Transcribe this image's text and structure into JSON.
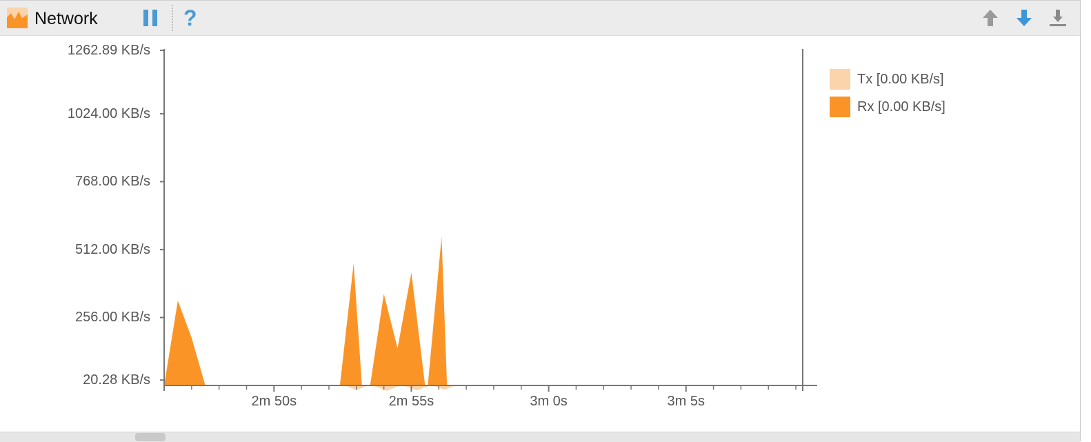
{
  "toolbar": {
    "title": "Network",
    "network_icon": "network-chart-icon",
    "pause_icon": "pause-icon",
    "help_icon": "help-icon",
    "help_glyph": "?",
    "up_icon": "arrow-up-icon",
    "down_icon": "arrow-down-icon",
    "download_icon": "download-icon"
  },
  "colors": {
    "tx": "#fcd4ab",
    "rx": "#fb9426",
    "accent_blue": "#4a9ad4",
    "axis": "#777777"
  },
  "legend": {
    "tx_label": "Tx [0.00 KB/s]",
    "rx_label": "Rx [0.00 KB/s]"
  },
  "chart_data": {
    "type": "area",
    "title": "Network",
    "xlabel": "",
    "ylabel": "",
    "y_tick_labels": [
      "1262.89 KB/s",
      "1024.00 KB/s",
      "768.00 KB/s",
      "512.00 KB/s",
      "256.00 KB/s",
      "20.28 KB/s"
    ],
    "y_ticks": [
      1262.89,
      1024,
      768,
      512,
      256,
      20.28
    ],
    "ylim": [
      0,
      1262.89
    ],
    "x_tick_labels": [
      "2m 50s",
      "2m 55s",
      "3m 0s",
      "3m 5s"
    ],
    "x_ticks": [
      170,
      175,
      180,
      185
    ],
    "xlim": [
      166,
      189.25
    ],
    "series": [
      {
        "name": "Rx",
        "points": [
          [
            166,
            0
          ],
          [
            166.5,
            320
          ],
          [
            167,
            180
          ],
          [
            167.5,
            0
          ],
          [
            172.4,
            0
          ],
          [
            172.9,
            460
          ],
          [
            173.2,
            0
          ],
          [
            173.5,
            0
          ],
          [
            174,
            345
          ],
          [
            174.5,
            140
          ],
          [
            175,
            425
          ],
          [
            175.5,
            0
          ],
          [
            175.6,
            0
          ],
          [
            176.1,
            560
          ],
          [
            176.3,
            0
          ]
        ]
      },
      {
        "name": "Tx",
        "points": [
          [
            172.6,
            0
          ],
          [
            173,
            -18
          ],
          [
            173.4,
            0
          ],
          [
            173.6,
            0
          ],
          [
            174.1,
            -20
          ],
          [
            174.6,
            0
          ],
          [
            174.7,
            0
          ],
          [
            175.2,
            -18
          ],
          [
            175.7,
            0
          ],
          [
            175.8,
            0
          ],
          [
            176.2,
            -16
          ],
          [
            176.6,
            0
          ]
        ]
      }
    ]
  }
}
